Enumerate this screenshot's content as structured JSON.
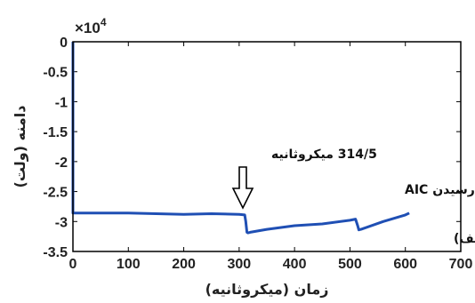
{
  "chart_data": {
    "type": "line",
    "xlabel": "زمان (میکروثانیه)",
    "ylabel": "دامنه (ولت)",
    "y_multiplier": "×10",
    "y_exponent": "4",
    "xlim": [
      0,
      700
    ],
    "ylim": [
      -3.5,
      0
    ],
    "x_ticks": [
      0,
      100,
      200,
      300,
      400,
      500,
      600,
      700
    ],
    "x_tick_labels": [
      "0",
      "100",
      "200",
      "300",
      "400",
      "500",
      "600",
      "700"
    ],
    "y_ticks": [
      0,
      -0.5,
      -1,
      -1.5,
      -2,
      -2.5,
      -3,
      -3.5
    ],
    "y_tick_labels": [
      "0",
      "-0.5",
      "-1",
      "-1.5",
      "-2",
      "-2.5",
      "-3",
      "-3.5"
    ],
    "grid": false,
    "line_color": "#1f4fb4",
    "series": [
      {
        "x": [
          0,
          0,
          0,
          2,
          10,
          50,
          100,
          150,
          200,
          250,
          300,
          310,
          312,
          314,
          316,
          320,
          350,
          400,
          450,
          500,
          510,
          514,
          516,
          520,
          560,
          600,
          607
        ],
        "y": [
          0,
          -2.0,
          -2.86,
          -2.86,
          -2.86,
          -2.86,
          -2.86,
          -2.87,
          -2.88,
          -2.87,
          -2.88,
          -2.89,
          -3.0,
          -3.18,
          -3.19,
          -3.18,
          -3.13,
          -3.07,
          -3.04,
          -2.98,
          -2.96,
          -3.07,
          -3.14,
          -3.13,
          -3.0,
          -2.89,
          -2.86
        ]
      }
    ],
    "annotations": {
      "arrival_time_label": "314/5 میکروثانیه",
      "aic_label": "اولین زمان رسیدن AIC",
      "panel_label": "(الف)"
    }
  }
}
